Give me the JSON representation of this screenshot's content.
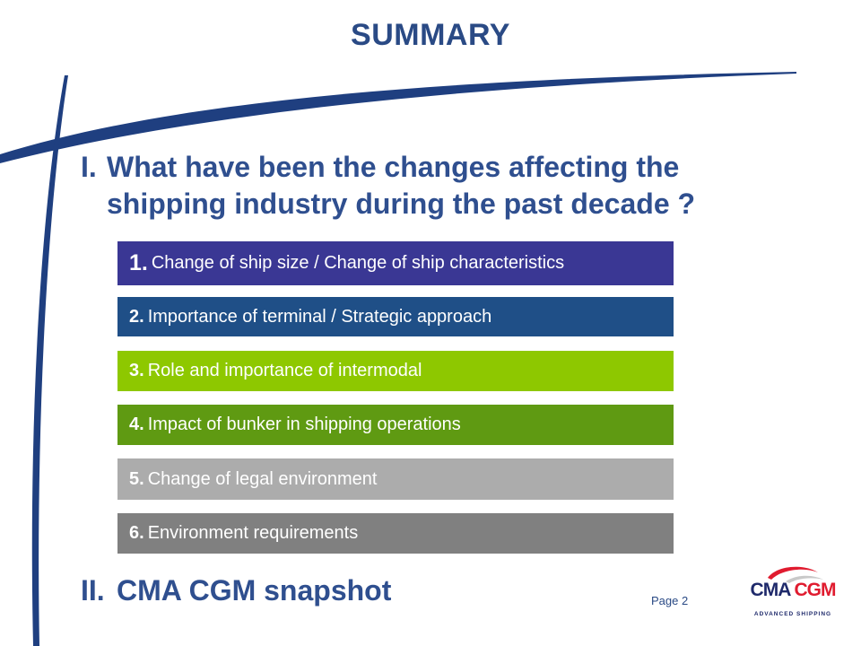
{
  "slide": {
    "title": "SUMMARY",
    "section_1": {
      "number": "I.",
      "text": "What have been the changes affecting the shipping industry during the past decade ?"
    },
    "items": [
      {
        "number": "1.",
        "text": "Change of ship size / Change of ship characteristics",
        "color": "#3a3794"
      },
      {
        "number": "2.",
        "text": "Importance of terminal / Strategic approach",
        "color": "#1f4f87"
      },
      {
        "number": "3.",
        "text": "Role and importance of intermodal",
        "color": "#8ec800"
      },
      {
        "number": "4.",
        "text": "Impact of bunker in shipping operations",
        "color": "#5f9a12"
      },
      {
        "number": "5.",
        "text": "Change of legal environment",
        "color": "#acacac"
      },
      {
        "number": "6.",
        "text": "Environment requirements",
        "color": "#808080"
      }
    ],
    "section_2": {
      "number": "II.",
      "text": "CMA CGM snapshot"
    },
    "page_label": "Page 2",
    "logo": {
      "name_left": "CMA",
      "name_right": "CGM",
      "tagline": "ADVANCED SHIPPING"
    }
  },
  "colors": {
    "title": "#2a4a85",
    "swoosh": "#1f3f80",
    "logo_navy": "#1f2a6b",
    "logo_red": "#e01b2f"
  }
}
